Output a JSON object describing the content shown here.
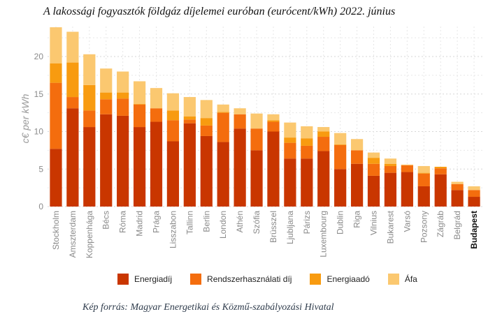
{
  "title": "A lakossági fogyasztók földgáz díjelemei euróban (eurócent/kWh) 2022. június",
  "source": "Kép forrás: Magyar Energetikai és Közmű-szabályozási Hivatal",
  "chart_data": {
    "type": "bar",
    "stacked": true,
    "ylabel": "c€ per kWh",
    "xlabel": "",
    "ylim": [
      0,
      24
    ],
    "yticks": [
      0,
      5,
      10,
      15,
      20
    ],
    "grid": true,
    "legend_position": "bottom",
    "categories": [
      "Stockholm",
      "Amszterdam",
      "Koppenhága",
      "Bécs",
      "Róma",
      "Madrid",
      "Prága",
      "Lisszabon",
      "Tallinn",
      "Berlin",
      "London",
      "Athén",
      "Szófia",
      "Brüsszel",
      "Ljubljana",
      "Párizs",
      "Luxembourg",
      "Dublin",
      "Riga",
      "Vilnius",
      "Bukarest",
      "Varsó",
      "Pozsony",
      "Zágráb",
      "Belgrád",
      "Budapest"
    ],
    "highlight_category": "Budapest",
    "series": [
      {
        "name": "Energiadíj",
        "color": "#c93600",
        "values": [
          7.7,
          13.1,
          10.6,
          12.3,
          12.1,
          10.6,
          11.3,
          8.7,
          11.1,
          9.4,
          8.6,
          10.4,
          7.5,
          10.0,
          6.4,
          6.4,
          7.4,
          5.0,
          5.7,
          4.1,
          4.5,
          4.6,
          2.7,
          4.3,
          2.2,
          1.3
        ]
      },
      {
        "name": "Rendszerhasználati díj",
        "color": "#f46d0e",
        "values": [
          8.8,
          1.5,
          2.2,
          2.0,
          2.3,
          3.0,
          1.8,
          2.8,
          0.5,
          1.4,
          3.9,
          1.9,
          2.9,
          1.3,
          2.1,
          1.7,
          1.9,
          3.2,
          1.8,
          1.6,
          0.9,
          0.9,
          1.7,
          0.8,
          0.8,
          0.9
        ]
      },
      {
        "name": "Energiaadó",
        "color": "#f89b10",
        "values": [
          2.6,
          4.6,
          3.4,
          0.9,
          0.8,
          0.1,
          0.0,
          1.3,
          0.4,
          1.0,
          0.1,
          0.0,
          0.0,
          0.2,
          0.7,
          1.0,
          0.7,
          0.1,
          0.0,
          0.8,
          0.3,
          0.0,
          0.1,
          0.2,
          0.0,
          0.0
        ]
      },
      {
        "name": "Áfa",
        "color": "#fbc870",
        "values": [
          4.8,
          4.1,
          4.1,
          3.2,
          2.8,
          3.0,
          2.7,
          2.3,
          2.6,
          2.4,
          1.0,
          0.8,
          2.0,
          0.8,
          2.0,
          1.6,
          0.6,
          1.5,
          1.5,
          0.7,
          0.7,
          0.1,
          0.9,
          0.0,
          0.3,
          0.5
        ]
      }
    ]
  }
}
